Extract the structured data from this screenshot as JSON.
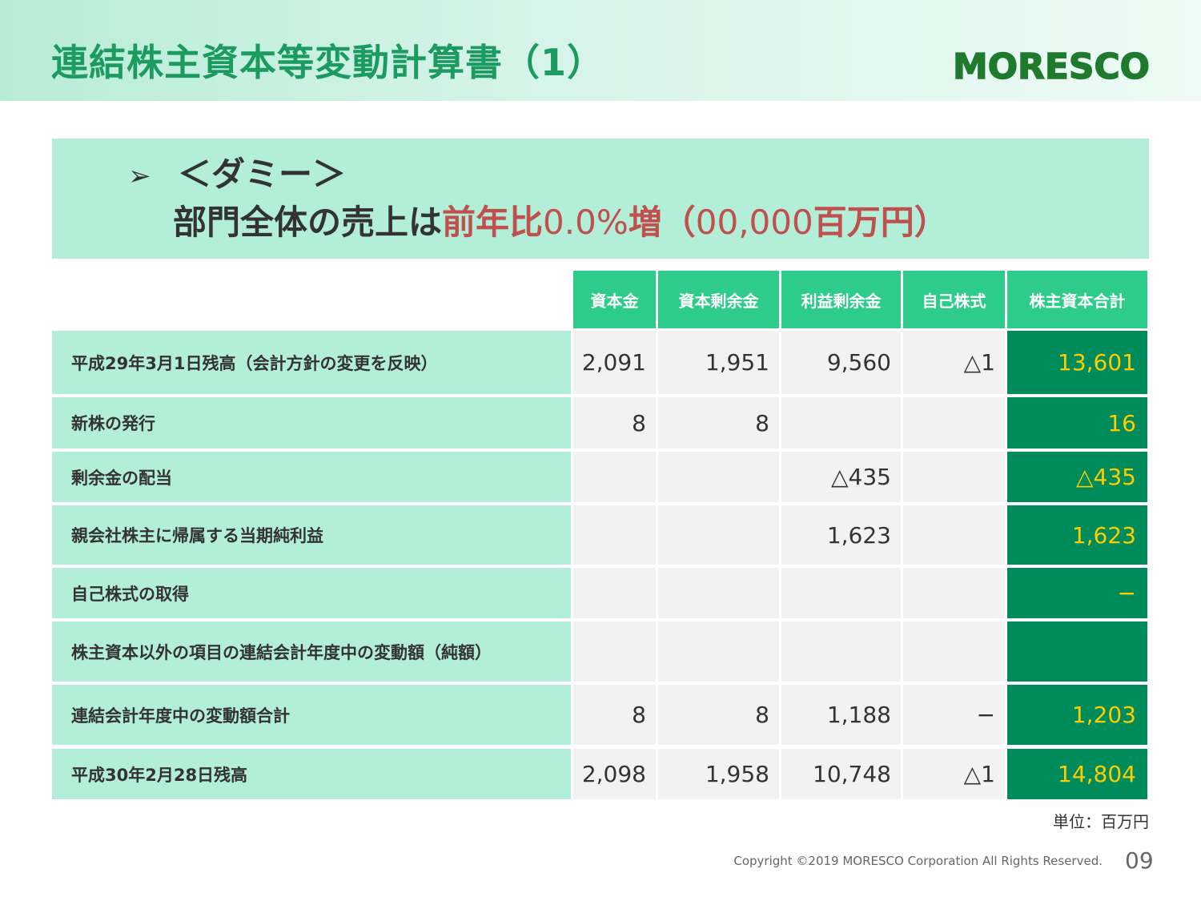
{
  "header": {
    "title": "連結株主資本等変動計算書（1）",
    "logo_text": "MORESCO"
  },
  "banner": {
    "line1": "＜ダミー＞",
    "line2_prefix": "部門全体の売上は",
    "line2_highlight": "前年比",
    "line2_rate": "0.0%",
    "line2_inc": "増",
    "line2_paren_open": "（",
    "line2_amount": "00,000",
    "line2_unit": "百万円",
    "line2_paren_close": "）"
  },
  "table": {
    "columns": [
      "資本金",
      "資本剰余金",
      "利益剰余金",
      "自己株式",
      "株主資本合計"
    ],
    "rows": [
      {
        "label": "平成29年3月1日残高（会計方針の変更を反映）",
        "values": [
          "2,091",
          "1,951",
          "9,560",
          "△1",
          "13,601"
        ]
      },
      {
        "label": "新株の発行",
        "values": [
          "8",
          "8",
          "",
          "",
          "16"
        ]
      },
      {
        "label": "剰余金の配当",
        "values": [
          "",
          "",
          "△435",
          "",
          "△435"
        ]
      },
      {
        "label": "親会社株主に帰属する当期純利益",
        "values": [
          "",
          "",
          "1,623",
          "",
          "1,623"
        ]
      },
      {
        "label": "自己株式の取得",
        "values": [
          "",
          "",
          "",
          "",
          "−"
        ]
      },
      {
        "label": "株主資本以外の項目の連結会計年度中の変動額（純額）",
        "values": [
          "",
          "",
          "",
          "",
          ""
        ]
      },
      {
        "label": "連結会計年度中の変動額合計",
        "values": [
          "8",
          "8",
          "1,188",
          "−",
          "1,203"
        ]
      },
      {
        "label": "平成30年2月28日残高",
        "values": [
          "2,098",
          "1,958",
          "10,748",
          "△1",
          "14,804"
        ]
      }
    ]
  },
  "unit_note": "単位：百万円",
  "footer": {
    "copyright": "Copyright ©2019 MORESCO Corporation All Rights Reserved.",
    "page": "09"
  },
  "colors": {
    "title_green": "#1c9b60",
    "header_cell": "#2ecc8a",
    "label_cell": "#b3eed8",
    "value_cell": "#f2f2f2",
    "total_cell": "#008c5a",
    "total_text": "#ffcc00",
    "highlight_red": "#c0504d",
    "logo_green": "#1f7a2e"
  }
}
